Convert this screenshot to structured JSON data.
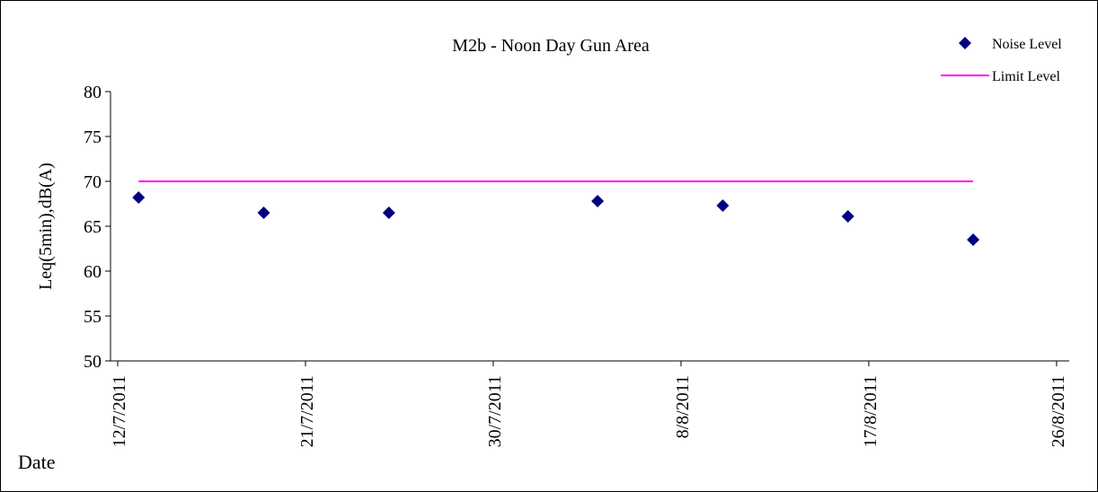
{
  "chart_data": {
    "type": "scatter",
    "title": "M2b - Noon Day Gun Area",
    "xlabel": "Date",
    "ylabel": "Leq(5min),dB(A)",
    "xlim": [
      "2011-07-12",
      "2011-08-26"
    ],
    "ylim": [
      50,
      80
    ],
    "y_ticks": [
      50,
      55,
      60,
      65,
      70,
      75,
      80
    ],
    "x_ticks": [
      "2011-07-12",
      "2011-07-21",
      "2011-07-30",
      "2011-08-08",
      "2011-08-17",
      "2011-08-26"
    ],
    "x_tick_labels": [
      "12/7/2011",
      "21/7/2011",
      "30/7/2011",
      "8/8/2011",
      "17/8/2011",
      "26/8/2011"
    ],
    "legend_position": "top-right",
    "grid": false,
    "series": [
      {
        "name": "Noise Level",
        "kind": "scatter",
        "marker": "diamond",
        "color": "#000080",
        "points": [
          {
            "x": "2011-07-13",
            "y": 68.2
          },
          {
            "x": "2011-07-19",
            "y": 66.5
          },
          {
            "x": "2011-07-25",
            "y": 66.5
          },
          {
            "x": "2011-08-04",
            "y": 67.8
          },
          {
            "x": "2011-08-10",
            "y": 67.3
          },
          {
            "x": "2011-08-16",
            "y": 66.1
          },
          {
            "x": "2011-08-22",
            "y": 63.5
          }
        ]
      },
      {
        "name": "Limit Level",
        "kind": "line",
        "color": "#ff00ff",
        "points": [
          {
            "x": "2011-07-13",
            "y": 70
          },
          {
            "x": "2011-08-22",
            "y": 70
          }
        ]
      }
    ]
  }
}
